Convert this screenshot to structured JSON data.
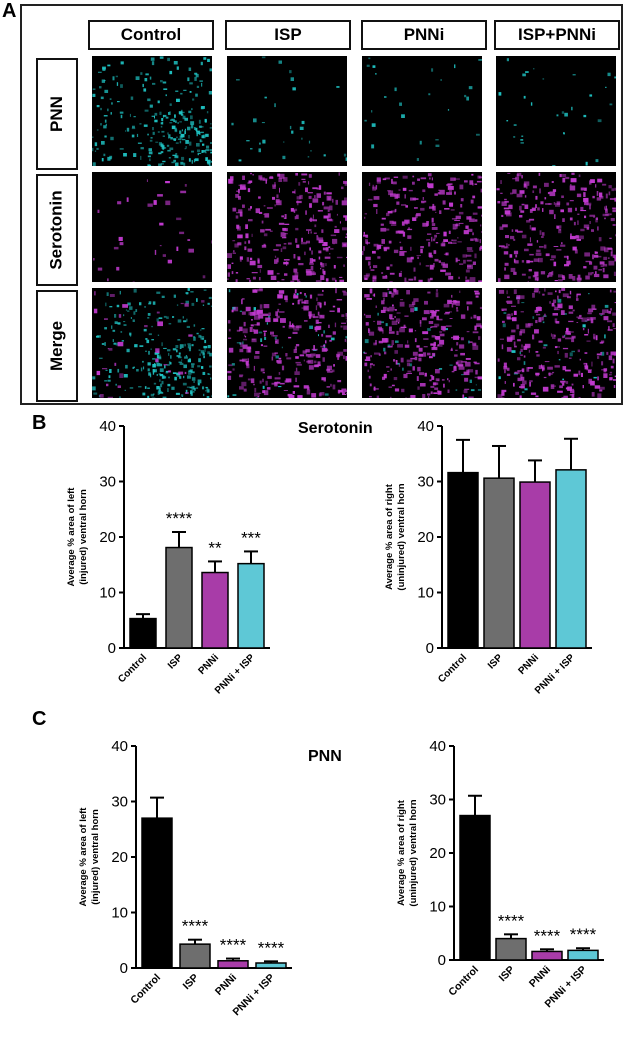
{
  "panel_labels": {
    "a": "A",
    "b": "B",
    "c": "C"
  },
  "microscopy": {
    "columns": [
      "Control",
      "ISP",
      "PNNi",
      "ISP+PNNi"
    ],
    "rows": [
      "PNN",
      "Serotonin",
      "Merge"
    ],
    "colors": {
      "pnn": "#1fc4c4",
      "serotonin": "#c23ad0"
    },
    "pnn_level": [
      1.0,
      0.12,
      0.1,
      0.12
    ],
    "serotonin_level": [
      0.12,
      1.0,
      1.0,
      1.0
    ]
  },
  "chart_data": [
    {
      "type": "bar",
      "title": "Serotonin",
      "ylabel": "Average % area of left (injured) ventral horn",
      "categories": [
        "Control",
        "ISP",
        "PNNi",
        "PNNi + ISP"
      ],
      "values": [
        5.3,
        18.1,
        13.6,
        15.2
      ],
      "errors": [
        0.8,
        2.8,
        2.0,
        2.2
      ],
      "annotations": [
        "",
        "****",
        "**",
        "***"
      ],
      "colors": [
        "#000000",
        "#6e6e6e",
        "#a83ca8",
        "#5ec8d6"
      ],
      "ylim": [
        0,
        40
      ],
      "yticks": [
        0,
        10,
        20,
        30,
        40
      ]
    },
    {
      "type": "bar",
      "title": "",
      "ylabel": "Average % area of right (uninjured) ventral horn",
      "categories": [
        "Control",
        "ISP",
        "PNNi",
        "PNNi + ISP"
      ],
      "values": [
        31.6,
        30.6,
        29.9,
        32.1
      ],
      "errors": [
        5.9,
        5.8,
        3.9,
        5.6
      ],
      "annotations": [
        "",
        "",
        "",
        ""
      ],
      "colors": [
        "#000000",
        "#6e6e6e",
        "#a83ca8",
        "#5ec8d6"
      ],
      "ylim": [
        0,
        40
      ],
      "yticks": [
        0,
        10,
        20,
        30,
        40
      ]
    },
    {
      "type": "bar",
      "title": "PNN",
      "ylabel": "Average % area of left (injured) ventral horn",
      "categories": [
        "Control",
        "ISP",
        "PNNi",
        "PNNi + ISP"
      ],
      "values": [
        27.0,
        4.3,
        1.3,
        0.9
      ],
      "errors": [
        3.7,
        0.8,
        0.4,
        0.3
      ],
      "annotations": [
        "",
        "****",
        "****",
        "****"
      ],
      "colors": [
        "#000000",
        "#6e6e6e",
        "#a83ca8",
        "#5ec8d6"
      ],
      "ylim": [
        0,
        40
      ],
      "yticks": [
        0,
        10,
        20,
        30,
        40
      ]
    },
    {
      "type": "bar",
      "title": "",
      "ylabel": "Average % area of right (uninjured) ventral horn",
      "categories": [
        "Control",
        "ISP",
        "PNNi",
        "PNNi + ISP"
      ],
      "values": [
        27.0,
        4.0,
        1.6,
        1.8
      ],
      "errors": [
        3.7,
        0.8,
        0.4,
        0.4
      ],
      "annotations": [
        "",
        "****",
        "****",
        "****"
      ],
      "colors": [
        "#000000",
        "#6e6e6e",
        "#a83ca8",
        "#5ec8d6"
      ],
      "ylim": [
        0,
        40
      ],
      "yticks": [
        0,
        10,
        20,
        30,
        40
      ]
    }
  ]
}
